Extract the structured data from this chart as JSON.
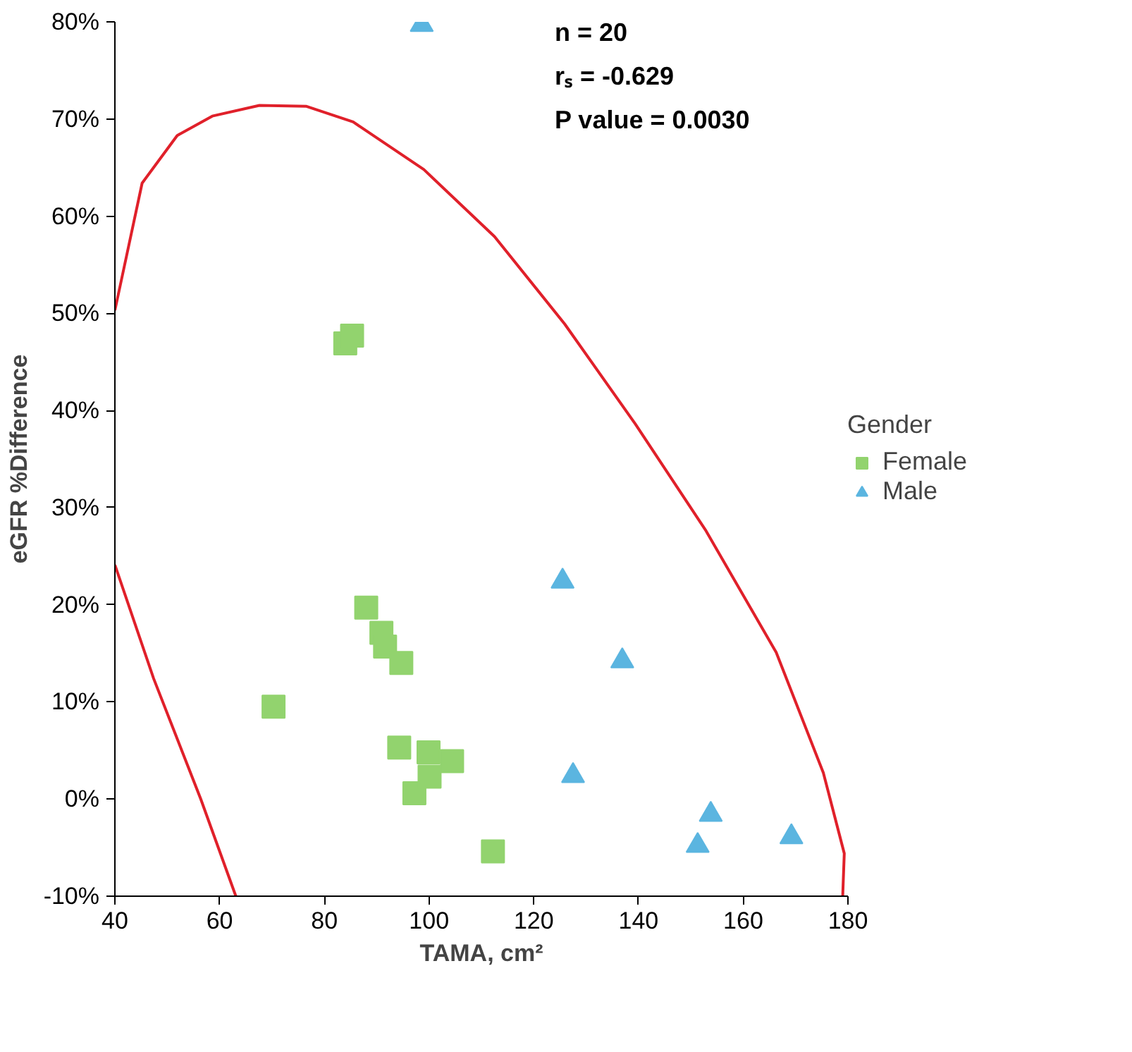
{
  "chart_data": {
    "type": "scatter",
    "xlabel": "TAMA, cm²",
    "ylabel": "eGFR %Difference",
    "legend_title": "Gender",
    "legend": "right",
    "grid": false,
    "xlim": [
      40,
      180
    ],
    "xticks": [
      40,
      60,
      80,
      100,
      120,
      140,
      160,
      180
    ],
    "ylim": [
      -10,
      80
    ],
    "yticks": [
      {
        "value": -10,
        "label": "-10%"
      },
      {
        "value": 0,
        "label": "0%"
      },
      {
        "value": 10,
        "label": "10%"
      },
      {
        "value": 20,
        "label": "20%"
      },
      {
        "value": 30,
        "label": "30%"
      },
      {
        "value": 40,
        "label": "40%"
      },
      {
        "value": 50,
        "label": "50%"
      },
      {
        "value": 60,
        "label": "60%"
      },
      {
        "value": 70,
        "label": "70%"
      },
      {
        "value": 80,
        "label": "80%"
      }
    ],
    "annotations": [
      "n = 20",
      "rₛ = -0.629",
      "P value = 0.0030"
    ],
    "series": [
      {
        "name": "Female",
        "color": "#92d36e",
        "marker": "square",
        "x": [
          70.3,
          84.0,
          85.3,
          88.0,
          90.9,
          91.6,
          94.7,
          94.3,
          97.2,
          99.9,
          100.1,
          104.4,
          112.2
        ],
        "values": [
          9.5,
          46.9,
          47.7,
          19.7,
          17.1,
          15.7,
          14.0,
          5.3,
          0.6,
          4.8,
          2.3,
          3.9,
          -5.4
        ]
      },
      {
        "name": "Male",
        "color": "#5bb5e0",
        "marker": "triangle",
        "x": [
          98.6,
          125.5,
          136.9,
          127.5,
          153.8,
          151.3,
          169.2
        ],
        "values": [
          79.7,
          22.4,
          14.2,
          2.4,
          -1.6,
          -4.8,
          -3.9
        ]
      },
      {
        "type": "line",
        "color": "#e0202a",
        "marker": "none",
        "x": [
          40,
          45.2,
          51.9,
          58.6,
          67.6,
          76.6,
          85.5,
          99.0,
          112.5,
          125.9,
          139.4,
          152.9,
          166.3,
          175.3,
          179.3,
          179,
          null,
          40,
          47.4,
          56.4,
          63.1
        ],
        "values": [
          50.3,
          63.4,
          68.3,
          70.3,
          71.4,
          71.3,
          69.7,
          64.8,
          57.9,
          48.9,
          38.6,
          27.6,
          15.1,
          2.7,
          -5.6,
          -10,
          null,
          24.1,
          12.4,
          0,
          -10
        ]
      }
    ]
  }
}
